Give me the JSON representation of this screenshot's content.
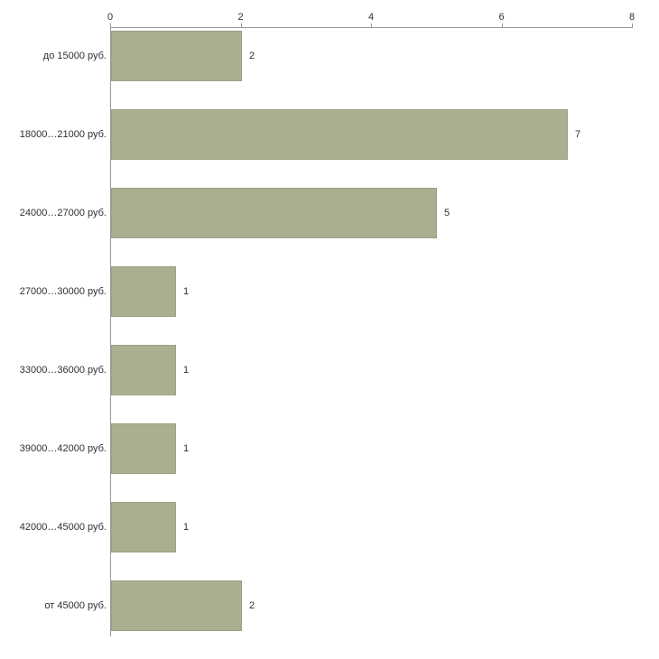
{
  "chart_data": {
    "type": "bar",
    "orientation": "horizontal",
    "title": "",
    "xlabel": "",
    "ylabel": "",
    "categories": [
      "до 15000 руб.",
      "18000…21000 руб.",
      "24000…27000 руб.",
      "27000…30000 руб.",
      "33000…36000 руб.",
      "39000…42000 руб.",
      "42000…45000 руб.",
      "от 45000 руб."
    ],
    "values": [
      2,
      7,
      5,
      1,
      1,
      1,
      1,
      2
    ],
    "value_labels": [
      "2",
      "7",
      "5",
      "1",
      "1",
      "1",
      "1",
      "2"
    ],
    "xlim": [
      0,
      8
    ],
    "x_ticks": [
      "0",
      "2",
      "4",
      "6",
      "8"
    ],
    "grid": false,
    "legend_position": "none",
    "bar_color": "#a9b092",
    "bar_border_color": "#9aa282",
    "axis_color": "#9a9a9a",
    "background_color": "#ffffff",
    "text_color": "#2f2f2f"
  }
}
